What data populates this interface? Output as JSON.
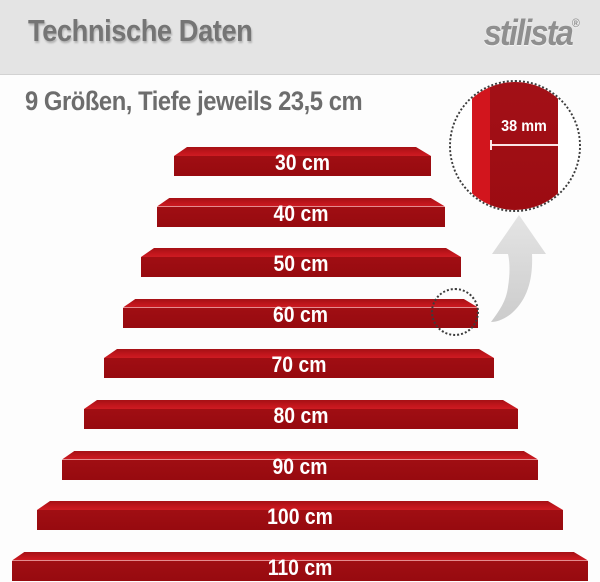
{
  "header": {
    "title": "Technische Daten",
    "logo_text": "stilista",
    "logo_registered": "®"
  },
  "subtitle": "9 Größen, Tiefe jeweils 23,5 cm",
  "shelves": [
    {
      "label": "30 cm"
    },
    {
      "label": "40 cm"
    },
    {
      "label": "50 cm"
    },
    {
      "label": "60 cm"
    },
    {
      "label": "70 cm"
    },
    {
      "label": "80 cm"
    },
    {
      "label": "90 cm"
    },
    {
      "label": "100 cm"
    },
    {
      "label": "110 cm"
    }
  ],
  "detail_zoom": {
    "thickness_label": "38 mm"
  },
  "product_specs": {
    "sizes_count": 9,
    "sizes_cm": [
      30,
      40,
      50,
      60,
      70,
      80,
      90,
      100,
      110
    ],
    "depth_cm": "23,5",
    "thickness_mm": 38
  },
  "colors": {
    "header_bg": "#e4e4e4",
    "title_gray": "#757575",
    "logo_gray": "#8f8f8f",
    "subtitle_gray": "#6d6d6d",
    "shelf_top_red": "#c4161d",
    "shelf_top_back_red": "#a51015",
    "shelf_front_red": "#a00e13",
    "detail_light_red": "#d2151d",
    "detail_dark_red": "#9c0c12",
    "arrow_gray": "#d8d8d8",
    "label_white": "#ffffff",
    "background": "#fdfdfd"
  }
}
